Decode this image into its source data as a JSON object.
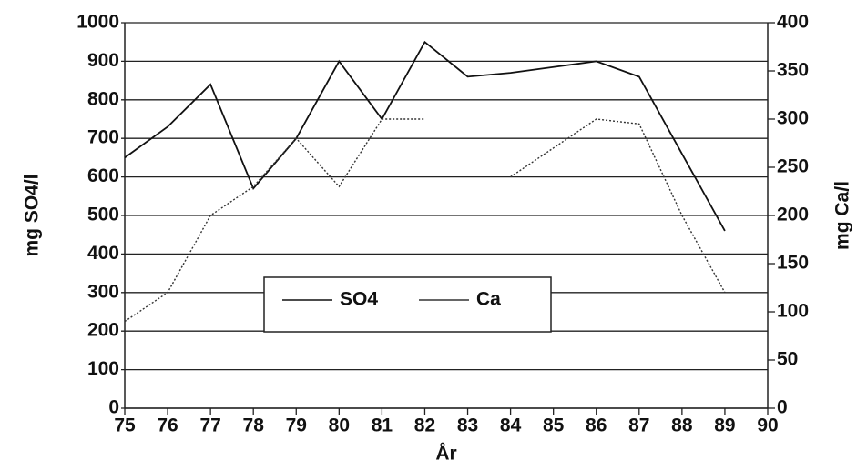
{
  "chart_data": {
    "type": "line",
    "x_label": "År",
    "y_label": "mg SO4/l",
    "y2_label": "mg Ca/l",
    "x": [
      75,
      76,
      77,
      78,
      79,
      80,
      81,
      82,
      83,
      84,
      85,
      86,
      87,
      88,
      89,
      90
    ],
    "xlim": [
      75,
      90
    ],
    "xticks": [
      75,
      76,
      77,
      78,
      79,
      80,
      81,
      82,
      83,
      84,
      85,
      86,
      87,
      88,
      89,
      90
    ],
    "ylim": [
      0,
      1000
    ],
    "yticks": [
      0,
      100,
      200,
      300,
      400,
      500,
      600,
      700,
      800,
      900,
      1000
    ],
    "y2lim": [
      0,
      400
    ],
    "y2ticks": [
      0,
      50,
      100,
      150,
      200,
      250,
      300,
      350,
      400
    ],
    "grid": true,
    "legend": "center",
    "series": [
      {
        "name": "SO4",
        "color": "#111111",
        "values": [
          650,
          730,
          840,
          570,
          700,
          900,
          750,
          950,
          860,
          870,
          885,
          900,
          860,
          660,
          460,
          null
        ]
      },
      {
        "name": "Ca",
        "color": "#333333",
        "axis": "y2",
        "values": [
          90,
          120,
          200,
          230,
          280,
          230,
          300,
          300,
          null,
          240,
          270,
          300,
          295,
          200,
          120,
          null
        ]
      }
    ]
  }
}
